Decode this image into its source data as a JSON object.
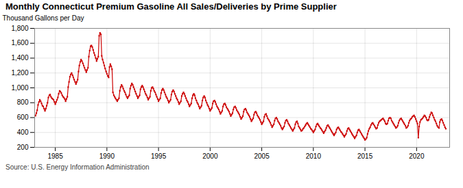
{
  "chart_data": {
    "type": "line",
    "title": "Monthly Connecticut Premium Gasoline All Sales/Deliveries by Prime Supplier",
    "y_label": "Thousand Gallons per Day",
    "annotations": [
      "Source: U.S. Energy Information Administration"
    ],
    "color": "#cc0000",
    "marker": "square",
    "grid": true,
    "xlim": [
      1983.0,
      2023.2
    ],
    "xticks": [
      1985,
      1990,
      1995,
      2000,
      2005,
      2010,
      2015,
      2020
    ],
    "ylim": [
      200,
      1800
    ],
    "yticks": [
      200,
      400,
      600,
      800,
      {
        "value": 1000,
        "label": "1,000"
      },
      {
        "value": 1200,
        "label": "1,200"
      },
      {
        "value": 1400,
        "label": "1,400"
      },
      {
        "value": 1600,
        "label": "1,600"
      },
      {
        "value": 1800,
        "label": "1,800"
      }
    ],
    "x": [
      1983.08,
      1983.17,
      1983.25,
      1983.33,
      1983.42,
      1983.5,
      1983.58,
      1983.67,
      1983.75,
      1983.83,
      1983.92,
      1984.0,
      1984.08,
      1984.17,
      1984.25,
      1984.33,
      1984.42,
      1984.5,
      1984.58,
      1984.67,
      1984.75,
      1984.83,
      1984.92,
      1985.0,
      1985.08,
      1985.17,
      1985.25,
      1985.33,
      1985.42,
      1985.5,
      1985.58,
      1985.67,
      1985.75,
      1985.83,
      1985.92,
      1986.0,
      1986.08,
      1986.17,
      1986.25,
      1986.33,
      1986.42,
      1986.5,
      1986.58,
      1986.67,
      1986.75,
      1986.83,
      1986.92,
      1987.0,
      1987.08,
      1987.17,
      1987.25,
      1987.33,
      1987.42,
      1987.5,
      1987.58,
      1987.67,
      1987.75,
      1987.83,
      1987.92,
      1988.0,
      1988.08,
      1988.17,
      1988.25,
      1988.33,
      1988.42,
      1988.5,
      1988.58,
      1988.67,
      1988.75,
      1988.83,
      1988.92,
      1989.0,
      1989.08,
      1989.17,
      1989.25,
      1989.33,
      1989.42,
      1989.5,
      1989.58,
      1989.67,
      1989.75,
      1989.83,
      1989.92,
      1990.0,
      1990.08,
      1990.17,
      1990.25,
      1990.33,
      1990.42,
      1990.5,
      1990.58,
      1990.67,
      1990.75,
      1990.83,
      1990.92,
      1991.0,
      1991.08,
      1991.17,
      1991.25,
      1991.33,
      1991.42,
      1991.5,
      1991.58,
      1991.67,
      1991.75,
      1991.83,
      1991.92,
      1992.0,
      1992.08,
      1992.17,
      1992.25,
      1992.33,
      1992.42,
      1992.5,
      1992.58,
      1992.67,
      1992.75,
      1992.83,
      1992.92,
      1993.0,
      1993.08,
      1993.17,
      1993.25,
      1993.33,
      1993.42,
      1993.5,
      1993.58,
      1993.67,
      1993.75,
      1993.83,
      1993.92,
      1994.0,
      1994.08,
      1994.17,
      1994.25,
      1994.33,
      1994.42,
      1994.5,
      1994.58,
      1994.67,
      1994.75,
      1994.83,
      1994.92,
      1995.0,
      1995.08,
      1995.17,
      1995.25,
      1995.33,
      1995.42,
      1995.5,
      1995.58,
      1995.67,
      1995.75,
      1995.83,
      1995.92,
      1996.0,
      1996.08,
      1996.17,
      1996.25,
      1996.33,
      1996.42,
      1996.5,
      1996.58,
      1996.67,
      1996.75,
      1996.83,
      1996.92,
      1997.0,
      1997.08,
      1997.17,
      1997.25,
      1997.33,
      1997.42,
      1997.5,
      1997.58,
      1997.67,
      1997.75,
      1997.83,
      1997.92,
      1998.0,
      1998.08,
      1998.17,
      1998.25,
      1998.33,
      1998.42,
      1998.5,
      1998.58,
      1998.67,
      1998.75,
      1998.83,
      1998.92,
      1999.0,
      1999.08,
      1999.17,
      1999.25,
      1999.33,
      1999.42,
      1999.5,
      1999.58,
      1999.67,
      1999.75,
      1999.83,
      1999.92,
      2000.0,
      2000.08,
      2000.17,
      2000.25,
      2000.33,
      2000.42,
      2000.5,
      2000.58,
      2000.67,
      2000.75,
      2000.83,
      2000.92,
      2001.0,
      2001.08,
      2001.17,
      2001.25,
      2001.33,
      2001.42,
      2001.5,
      2001.58,
      2001.67,
      2001.75,
      2001.83,
      2001.92,
      2002.0,
      2002.08,
      2002.17,
      2002.25,
      2002.33,
      2002.42,
      2002.5,
      2002.58,
      2002.67,
      2002.75,
      2002.83,
      2002.92,
      2003.0,
      2003.08,
      2003.17,
      2003.25,
      2003.33,
      2003.42,
      2003.5,
      2003.58,
      2003.67,
      2003.75,
      2003.83,
      2003.92,
      2004.0,
      2004.08,
      2004.17,
      2004.25,
      2004.33,
      2004.42,
      2004.5,
      2004.58,
      2004.67,
      2004.75,
      2004.83,
      2004.92,
      2005.0,
      2005.08,
      2005.17,
      2005.25,
      2005.33,
      2005.42,
      2005.5,
      2005.58,
      2005.67,
      2005.75,
      2005.83,
      2005.92,
      2006.0,
      2006.08,
      2006.17,
      2006.25,
      2006.33,
      2006.42,
      2006.5,
      2006.58,
      2006.67,
      2006.75,
      2006.83,
      2006.92,
      2007.0,
      2007.08,
      2007.17,
      2007.25,
      2007.33,
      2007.42,
      2007.5,
      2007.58,
      2007.67,
      2007.75,
      2007.83,
      2007.92,
      2008.0,
      2008.08,
      2008.17,
      2008.25,
      2008.33,
      2008.42,
      2008.5,
      2008.58,
      2008.67,
      2008.75,
      2008.83,
      2008.92,
      2009.0,
      2009.08,
      2009.17,
      2009.25,
      2009.33,
      2009.42,
      2009.5,
      2009.58,
      2009.67,
      2009.75,
      2009.83,
      2009.92,
      2010.0,
      2010.08,
      2010.17,
      2010.25,
      2010.33,
      2010.42,
      2010.5,
      2010.58,
      2010.67,
      2010.75,
      2010.83,
      2010.92,
      2011.0,
      2011.08,
      2011.17,
      2011.25,
      2011.33,
      2011.42,
      2011.5,
      2011.58,
      2011.67,
      2011.75,
      2011.83,
      2011.92,
      2012.0,
      2012.08,
      2012.17,
      2012.25,
      2012.33,
      2012.42,
      2012.5,
      2012.58,
      2012.67,
      2012.75,
      2012.83,
      2012.92,
      2013.0,
      2013.08,
      2013.17,
      2013.25,
      2013.33,
      2013.42,
      2013.5,
      2013.58,
      2013.67,
      2013.75,
      2013.83,
      2013.92,
      2014.0,
      2014.08,
      2014.17,
      2014.25,
      2014.33,
      2014.42,
      2014.5,
      2014.58,
      2014.67,
      2014.75,
      2014.83,
      2014.92,
      2015.0,
      2015.08,
      2015.17,
      2015.25,
      2015.33,
      2015.42,
      2015.5,
      2015.58,
      2015.67,
      2015.75,
      2015.83,
      2015.92,
      2016.0,
      2016.08,
      2016.17,
      2016.25,
      2016.33,
      2016.42,
      2016.5,
      2016.58,
      2016.67,
      2016.75,
      2016.83,
      2016.92,
      2017.0,
      2017.08,
      2017.17,
      2017.25,
      2017.33,
      2017.42,
      2017.5,
      2017.58,
      2017.67,
      2017.75,
      2017.83,
      2017.92,
      2018.0,
      2018.08,
      2018.17,
      2018.25,
      2018.33,
      2018.42,
      2018.5,
      2018.58,
      2018.67,
      2018.75,
      2018.83,
      2018.92,
      2019.0,
      2019.08,
      2019.17,
      2019.25,
      2019.33,
      2019.42,
      2019.5,
      2019.58,
      2019.67,
      2019.75,
      2019.83,
      2019.92,
      2020.0,
      2020.08,
      2020.17,
      2020.25,
      2020.33,
      2020.42,
      2020.5,
      2020.58,
      2020.67,
      2020.75,
      2020.83,
      2020.92,
      2021.0,
      2021.08,
      2021.17,
      2021.25,
      2021.33,
      2021.42,
      2021.5,
      2021.58,
      2021.67,
      2021.75,
      2021.83,
      2021.92,
      2022.0,
      2022.08,
      2022.17,
      2022.25,
      2022.33,
      2022.42,
      2022.5,
      2022.58,
      2022.67,
      2022.75,
      2022.83
    ],
    "values": [
      625,
      660,
      700,
      770,
      810,
      840,
      820,
      790,
      760,
      750,
      720,
      690,
      720,
      760,
      800,
      870,
      900,
      910,
      880,
      860,
      850,
      840,
      810,
      780,
      810,
      840,
      870,
      920,
      960,
      950,
      930,
      900,
      880,
      870,
      850,
      820,
      850,
      880,
      1010,
      1080,
      1150,
      1180,
      1200,
      1170,
      1140,
      1110,
      1080,
      1050,
      1080,
      1110,
      1220,
      1300,
      1350,
      1380,
      1360,
      1330,
      1300,
      1270,
      1240,
      1210,
      1240,
      1270,
      1420,
      1500,
      1560,
      1570,
      1550,
      1510,
      1470,
      1440,
      1400,
      1360,
      1390,
      1420,
      1700,
      1740,
      1720,
      1430,
      1380,
      1340,
      1300,
      1260,
      1220,
      1190,
      1160,
      1140,
      1280,
      1320,
      1290,
      1250,
      940,
      900,
      880,
      860,
      840,
      820,
      840,
      860,
      960,
      1010,
      1040,
      1020,
      990,
      960,
      940,
      910,
      880,
      860,
      880,
      900,
      990,
      1030,
      1060,
      1040,
      1010,
      980,
      950,
      920,
      890,
      860,
      880,
      900,
      980,
      1010,
      1030,
      1010,
      980,
      950,
      920,
      900,
      870,
      840,
      860,
      880,
      960,
      1000,
      1010,
      990,
      960,
      940,
      910,
      880,
      850,
      820,
      840,
      860,
      930,
      970,
      990,
      970,
      940,
      910,
      880,
      860,
      830,
      800,
      820,
      840,
      910,
      950,
      970,
      950,
      920,
      890,
      860,
      840,
      810,
      780,
      800,
      820,
      890,
      920,
      940,
      920,
      890,
      860,
      830,
      810,
      780,
      750,
      770,
      790,
      860,
      900,
      920,
      900,
      860,
      830,
      800,
      780,
      750,
      720,
      740,
      760,
      830,
      870,
      890,
      870,
      830,
      800,
      770,
      750,
      720,
      690,
      710,
      730,
      790,
      820,
      830,
      810,
      780,
      750,
      730,
      710,
      680,
      650,
      670,
      690,
      750,
      780,
      790,
      770,
      740,
      720,
      700,
      680,
      650,
      620,
      640,
      660,
      710,
      740,
      750,
      730,
      700,
      680,
      660,
      640,
      610,
      580,
      600,
      620,
      680,
      710,
      720,
      700,
      670,
      650,
      630,
      610,
      580,
      550,
      570,
      590,
      640,
      670,
      680,
      660,
      630,
      610,
      590,
      570,
      540,
      510,
      530,
      550,
      610,
      640,
      650,
      620,
      590,
      570,
      550,
      530,
      500,
      470,
      490,
      510,
      560,
      590,
      600,
      580,
      550,
      530,
      510,
      490,
      460,
      440,
      460,
      480,
      530,
      560,
      570,
      550,
      520,
      500,
      480,
      460,
      440,
      420,
      440,
      460,
      510,
      540,
      550,
      520,
      480,
      460,
      440,
      420,
      430,
      450,
      460,
      480,
      500,
      520,
      530,
      510,
      490,
      470,
      450,
      440,
      420,
      400,
      420,
      440,
      480,
      510,
      520,
      500,
      480,
      460,
      450,
      430,
      410,
      390,
      410,
      430,
      460,
      490,
      500,
      480,
      460,
      440,
      420,
      400,
      380,
      360,
      380,
      400,
      440,
      460,
      470,
      450,
      430,
      410,
      400,
      380,
      360,
      340,
      360,
      380,
      420,
      450,
      460,
      440,
      420,
      400,
      380,
      360,
      340,
      320,
      340,
      360,
      400,
      430,
      440,
      420,
      400,
      380,
      360,
      340,
      320,
      300,
      310,
      330,
      380,
      420,
      450,
      470,
      500,
      520,
      530,
      510,
      490,
      470,
      450,
      460,
      500,
      530,
      550,
      560,
      570,
      580,
      590,
      570,
      550,
      520,
      510,
      520,
      560,
      590,
      600,
      590,
      560,
      540,
      520,
      500,
      480,
      460,
      470,
      490,
      530,
      560,
      580,
      590,
      570,
      550,
      530,
      510,
      490,
      460,
      470,
      490,
      530,
      560,
      580,
      590,
      610,
      620,
      630,
      610,
      580,
      550,
      520,
      330,
      480,
      540,
      570,
      580,
      590,
      610,
      630,
      620,
      600,
      570,
      560,
      570,
      610,
      640,
      670,
      660,
      630,
      600,
      570,
      550,
      520,
      490,
      470,
      460,
      540,
      570,
      580,
      560,
      530,
      500,
      470,
      450
    ]
  }
}
